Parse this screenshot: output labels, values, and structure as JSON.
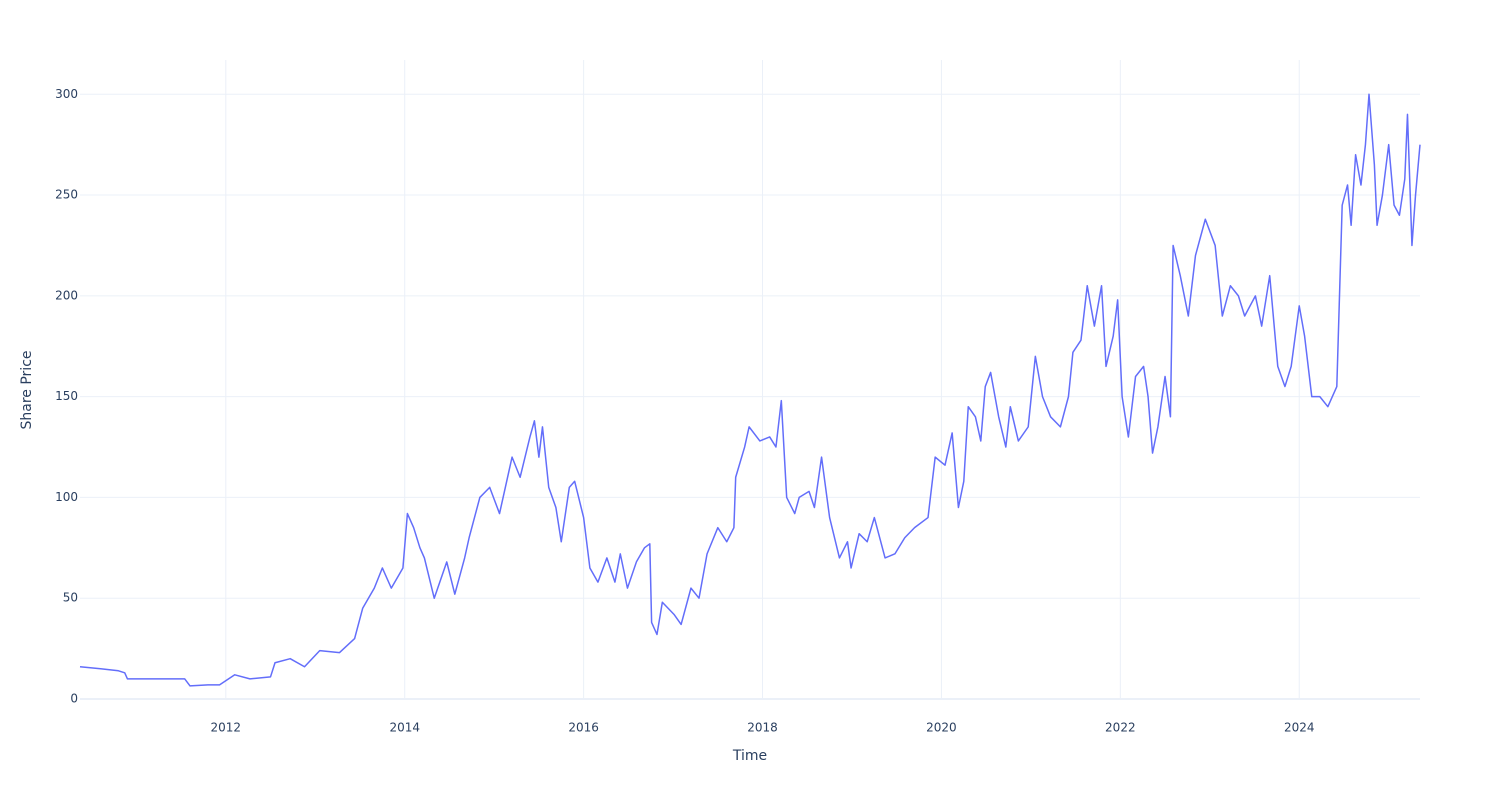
{
  "chart_data": {
    "type": "line",
    "x_label": "Time",
    "y_label": "Share Price",
    "x": [
      2010.37,
      2010.6,
      2010.8,
      2010.87,
      2010.9,
      2011.04,
      2011.3,
      2011.54,
      2011.6,
      2011.8,
      2011.93,
      2012.1,
      2012.27,
      2012.5,
      2012.55,
      2012.72,
      2012.88,
      2013.05,
      2013.27,
      2013.44,
      2013.53,
      2013.66,
      2013.75,
      2013.85,
      2013.98,
      2014.03,
      2014.1,
      2014.17,
      2014.22,
      2014.33,
      2014.47,
      2014.56,
      2014.67,
      2014.72,
      2014.84,
      2014.95,
      2015.06,
      2015.2,
      2015.29,
      2015.4,
      2015.45,
      2015.5,
      2015.54,
      2015.61,
      2015.69,
      2015.75,
      2015.84,
      2015.9,
      2016.0,
      2016.07,
      2016.16,
      2016.26,
      2016.35,
      2016.41,
      2016.49,
      2016.59,
      2016.68,
      2016.74,
      2016.76,
      2016.82,
      2016.88,
      2017.01,
      2017.09,
      2017.2,
      2017.29,
      2017.38,
      2017.5,
      2017.6,
      2017.68,
      2017.7,
      2017.8,
      2017.85,
      2017.97,
      2018.08,
      2018.15,
      2018.21,
      2018.27,
      2018.36,
      2018.41,
      2018.52,
      2018.58,
      2018.66,
      2018.75,
      2018.86,
      2018.95,
      2018.99,
      2019.08,
      2019.17,
      2019.25,
      2019.37,
      2019.48,
      2019.59,
      2019.7,
      2019.85,
      2019.93,
      2020.04,
      2020.12,
      2020.19,
      2020.25,
      2020.3,
      2020.38,
      2020.44,
      2020.49,
      2020.55,
      2020.64,
      2020.72,
      2020.77,
      2020.86,
      2020.97,
      2021.05,
      2021.13,
      2021.22,
      2021.33,
      2021.42,
      2021.47,
      2021.56,
      2021.63,
      2021.71,
      2021.79,
      2021.84,
      2021.92,
      2021.97,
      2022.02,
      2022.09,
      2022.17,
      2022.26,
      2022.31,
      2022.36,
      2022.42,
      2022.5,
      2022.56,
      2022.59,
      2022.67,
      2022.76,
      2022.84,
      2022.95,
      2023.06,
      2023.14,
      2023.23,
      2023.32,
      2023.39,
      2023.51,
      2023.58,
      2023.67,
      2023.76,
      2023.84,
      2023.91,
      2024.0,
      2024.06,
      2024.14,
      2024.23,
      2024.32,
      2024.42,
      2024.48,
      2024.54,
      2024.58,
      2024.63,
      2024.69,
      2024.74,
      2024.78,
      2024.84,
      2024.87,
      2024.93,
      2025.0,
      2025.06,
      2025.12,
      2025.18,
      2025.21,
      2025.26,
      2025.3,
      2025.35
    ],
    "series": [
      {
        "color": "#636efa",
        "values": [
          16,
          15,
          14,
          13,
          10,
          10,
          10,
          10,
          6.5,
          7,
          7,
          12,
          10,
          11,
          18,
          20,
          16,
          24,
          23,
          30,
          45,
          55,
          65,
          55,
          65,
          92,
          85,
          75,
          70,
          50,
          68,
          52,
          70,
          80,
          100,
          105,
          92,
          120,
          110,
          130,
          138,
          120,
          135,
          105,
          95,
          78,
          105,
          108,
          90,
          65,
          58,
          70,
          58,
          72,
          55,
          68,
          75,
          77,
          38,
          32,
          48,
          42,
          37,
          55,
          50,
          72,
          85,
          78,
          85,
          110,
          125,
          135,
          128,
          130,
          125,
          148,
          100,
          92,
          100,
          103,
          95,
          120,
          90,
          70,
          78,
          65,
          82,
          78,
          90,
          70,
          72,
          80,
          85,
          90,
          120,
          116,
          132,
          95,
          108,
          145,
          140,
          128,
          155,
          162,
          140,
          125,
          145,
          128,
          135,
          170,
          150,
          140,
          135,
          150,
          172,
          178,
          205,
          185,
          205,
          165,
          180,
          198,
          150,
          130,
          160,
          165,
          150,
          122,
          135,
          160,
          140,
          225,
          210,
          190,
          220,
          238,
          225,
          190,
          205,
          200,
          190,
          200,
          185,
          210,
          165,
          155,
          165,
          195,
          180,
          150,
          150,
          145,
          155,
          245,
          255,
          235,
          270,
          255,
          275,
          300,
          265,
          235,
          250,
          275,
          245,
          240,
          258,
          290,
          225,
          250,
          275
        ]
      }
    ],
    "xlim": [
      2010.37,
      2025.35
    ],
    "xticks": [
      2012,
      2014,
      2016,
      2018,
      2020,
      2022,
      2024
    ],
    "ylim": [
      0,
      317
    ],
    "yticks": [
      0,
      50,
      100,
      150,
      200,
      250,
      300
    ],
    "grid": true
  }
}
